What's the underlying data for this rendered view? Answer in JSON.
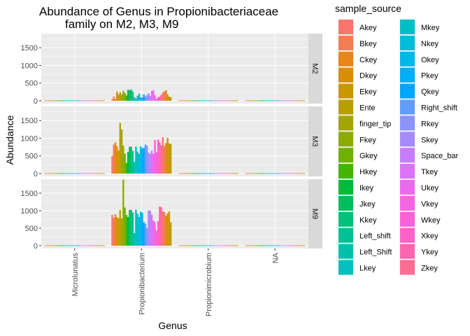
{
  "chart_data": {
    "type": "bar",
    "title_lines": [
      "Abundance of Genus in Propionibacteriaceae",
      "family on M2, M3, M9"
    ],
    "xlabel": "Genus",
    "ylabel": "Abundance",
    "ylim": [
      -80,
      1900
    ],
    "yticks": [
      0,
      500,
      1000,
      1500
    ],
    "ytick_labels": [
      "0",
      "500",
      "1000",
      "1500"
    ],
    "grid": true,
    "legend_position": "right",
    "legend_title": "sample_source",
    "categories": [
      "Microlunatus",
      "Propionibacterium",
      "Propionimicrobium",
      "NA"
    ],
    "facets": [
      {
        "label": "M2",
        "values": {
          "Microlunatus": [
            10,
            10,
            10,
            10,
            10,
            10,
            10,
            10,
            10,
            10,
            10,
            10,
            10,
            10,
            10,
            10,
            10,
            10,
            10,
            10,
            10,
            10,
            10,
            10,
            10,
            10,
            10,
            10,
            10,
            10,
            10,
            10,
            10,
            10,
            10,
            10,
            10,
            10
          ],
          "Propionibacterium": [
            40,
            120,
            50,
            260,
            180,
            240,
            180,
            280,
            220,
            150,
            310,
            300,
            320,
            260,
            100,
            60,
            140,
            200,
            100,
            90,
            180,
            120,
            160,
            210,
            140,
            280,
            300,
            160,
            60,
            100,
            120,
            170,
            240,
            260,
            300,
            180,
            120,
            100
          ],
          "Propionimicrobium": [
            10,
            10,
            10,
            10,
            10,
            10,
            10,
            10,
            10,
            10,
            10,
            10,
            10,
            10,
            10,
            10,
            10,
            10,
            10,
            10,
            10,
            10,
            10,
            10,
            10,
            10,
            10,
            10,
            10,
            10,
            10,
            10,
            10,
            10,
            10,
            10,
            10,
            10
          ],
          "NA": [
            10,
            10,
            10,
            10,
            10,
            10,
            10,
            10,
            10,
            10,
            10,
            10,
            10,
            10,
            10,
            10,
            10,
            10,
            10,
            10,
            10,
            10,
            10,
            10,
            10,
            10,
            10,
            10,
            10,
            10,
            10,
            10,
            10,
            10,
            10,
            10,
            10,
            10
          ]
        }
      },
      {
        "label": "M3",
        "values": {
          "Microlunatus": [
            10,
            10,
            10,
            10,
            10,
            10,
            10,
            10,
            10,
            10,
            10,
            10,
            10,
            10,
            10,
            10,
            10,
            10,
            10,
            10,
            10,
            10,
            10,
            10,
            10,
            10,
            10,
            10,
            10,
            10,
            10,
            10,
            10,
            10,
            10,
            10,
            10,
            10
          ],
          "Propionibacterium": [
            500,
            820,
            880,
            770,
            650,
            1430,
            1250,
            790,
            560,
            300,
            610,
            760,
            760,
            640,
            330,
            760,
            620,
            560,
            770,
            710,
            730,
            820,
            790,
            590,
            560,
            650,
            560,
            950,
            600,
            960,
            880,
            800,
            1030,
            780,
            860,
            1010,
            850,
            840
          ],
          "Propionimicrobium": [
            10,
            10,
            10,
            10,
            10,
            10,
            10,
            10,
            10,
            10,
            10,
            10,
            10,
            10,
            10,
            10,
            10,
            10,
            10,
            10,
            10,
            10,
            10,
            10,
            10,
            10,
            10,
            10,
            10,
            10,
            10,
            10,
            10,
            10,
            10,
            10,
            10,
            10
          ],
          "NA": [
            10,
            10,
            10,
            10,
            10,
            10,
            10,
            10,
            10,
            10,
            10,
            10,
            10,
            10,
            10,
            10,
            10,
            10,
            10,
            10,
            10,
            10,
            10,
            10,
            10,
            10,
            10,
            10,
            10,
            10,
            10,
            10,
            10,
            10,
            10,
            10,
            10,
            10
          ]
        }
      },
      {
        "label": "M9",
        "values": {
          "Microlunatus": [
            10,
            10,
            10,
            10,
            10,
            10,
            10,
            10,
            10,
            10,
            10,
            10,
            10,
            10,
            10,
            10,
            10,
            10,
            10,
            10,
            10,
            10,
            10,
            10,
            10,
            10,
            10,
            10,
            10,
            10,
            10,
            10,
            10,
            10,
            10,
            10,
            10,
            10
          ],
          "Propionibacterium": [
            880,
            800,
            900,
            820,
            780,
            1020,
            780,
            1890,
            1090,
            880,
            820,
            1020,
            1020,
            950,
            360,
            1030,
            910,
            820,
            970,
            940,
            670,
            630,
            500,
            1010,
            1000,
            890,
            720,
            670,
            430,
            700,
            1120,
            1100,
            980,
            960,
            860,
            920,
            980,
            670
          ],
          "Propionimicrobium": [
            10,
            10,
            10,
            10,
            10,
            10,
            10,
            10,
            10,
            10,
            10,
            10,
            10,
            10,
            10,
            10,
            10,
            10,
            10,
            10,
            10,
            10,
            10,
            10,
            10,
            10,
            10,
            10,
            10,
            10,
            10,
            10,
            10,
            10,
            10,
            10,
            10,
            10
          ],
          "NA": [
            10,
            10,
            10,
            10,
            10,
            10,
            10,
            10,
            10,
            10,
            10,
            10,
            10,
            10,
            10,
            10,
            10,
            10,
            10,
            10,
            10,
            10,
            10,
            10,
            10,
            10,
            10,
            10,
            10,
            10,
            10,
            10,
            10,
            10,
            10,
            10,
            10,
            10
          ]
        }
      }
    ],
    "series": [
      {
        "name": "Akey",
        "color": "#F8766D"
      },
      {
        "name": "Bkey",
        "color": "#F27D53"
      },
      {
        "name": "Ckey",
        "color": "#E7861B"
      },
      {
        "name": "Dkey",
        "color": "#D98D00"
      },
      {
        "name": "Ekey",
        "color": "#C99800"
      },
      {
        "name": "Ente",
        "color": "#B79F00"
      },
      {
        "name": "finger_tip",
        "color": "#A3A500"
      },
      {
        "name": "Fkey",
        "color": "#8CAB00"
      },
      {
        "name": "Gkey",
        "color": "#6FB000"
      },
      {
        "name": "Hkey",
        "color": "#45B500"
      },
      {
        "name": "Ikey",
        "color": "#00BA38"
      },
      {
        "name": "Jkey",
        "color": "#00BD5F"
      },
      {
        "name": "Kkey",
        "color": "#00C07B"
      },
      {
        "name": "Left_shift",
        "color": "#00C094"
      },
      {
        "name": "Left_Shift",
        "color": "#00C0AA"
      },
      {
        "name": "Lkey",
        "color": "#00BFBC"
      },
      {
        "name": "Mkey",
        "color": "#00BFC4"
      },
      {
        "name": "Nkey",
        "color": "#00BCD8"
      },
      {
        "name": "Okey",
        "color": "#00B6EB"
      },
      {
        "name": "Pkey",
        "color": "#00ADFA"
      },
      {
        "name": "Qkey",
        "color": "#00A5FF"
      },
      {
        "name": "Right_shift",
        "color": "#619CFF"
      },
      {
        "name": "Rkey",
        "color": "#8B93FF"
      },
      {
        "name": "Skey",
        "color": "#A58AFF"
      },
      {
        "name": "Space_bar",
        "color": "#C77CFF"
      },
      {
        "name": "Tkey",
        "color": "#DC71FA"
      },
      {
        "name": "Ukey",
        "color": "#EB68F1"
      },
      {
        "name": "Vkey",
        "color": "#F564E3"
      },
      {
        "name": "Wkey",
        "color": "#FB61D7"
      },
      {
        "name": "Xkey",
        "color": "#FF61C9"
      },
      {
        "name": "Ykey",
        "color": "#FF64B0"
      },
      {
        "name": "Zkey",
        "color": "#FF6C91"
      }
    ],
    "extra_bar_colors": [
      "#F8766D",
      "#F27D53",
      "#E7861B",
      "#D98D00",
      "#C99800",
      "#B79F00"
    ]
  }
}
